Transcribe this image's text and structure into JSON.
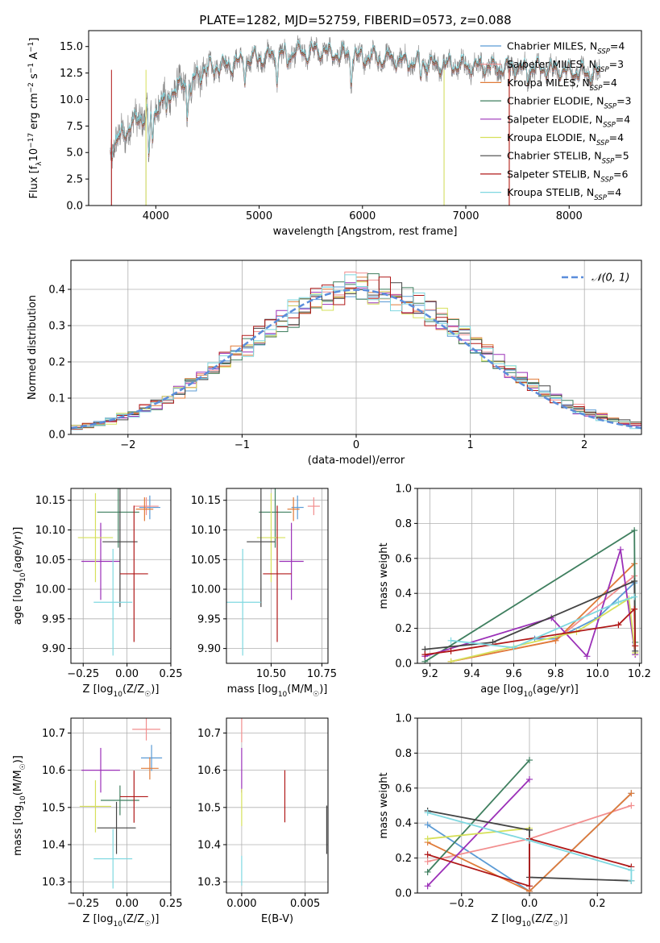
{
  "figure_title": "PLATE=1282, MJD=52759, FIBERID=0573, z=0.088",
  "colors": {
    "Chabrier MILES": "#5b9bd5",
    "Salpeter MILES": "#f28e8e",
    "Kroupa MILES": "#e07b39",
    "Chabrier ELODIE": "#3f7f5f",
    "Salpeter ELODIE": "#9b30b8",
    "Kroupa ELODIE": "#d6e05a",
    "Chabrier STELIB": "#444444",
    "Salpeter STELIB": "#b01818",
    "Kroupa STELIB": "#7fd8e0",
    "norm": "#5b8ddb",
    "data": "#808080"
  },
  "chart_data": [
    {
      "id": "spectrum",
      "type": "line",
      "title": "PLATE=1282, MJD=52759, FIBERID=0573, z=0.088",
      "xlabel": "wavelength [Angstrom, rest frame]",
      "ylabel": "Flux [fλ10⁻¹⁷ erg cm⁻² s⁻¹ A⁻¹]",
      "xlim": [
        3350,
        8700
      ],
      "ylim": [
        0,
        16.5
      ],
      "xticks": [
        4000,
        5000,
        6000,
        7000,
        8000
      ],
      "yticks": [
        0.0,
        2.5,
        5.0,
        7.5,
        10.0,
        12.5,
        15.0
      ],
      "legend_position": "right",
      "legend": [
        {
          "name": "Chabrier MILES",
          "nssp": "4"
        },
        {
          "name": "Salpeter MILES",
          "nssp": "3"
        },
        {
          "name": "Kroupa MILES",
          "nssp": "4"
        },
        {
          "name": "Chabrier ELODIE",
          "nssp": "3"
        },
        {
          "name": "Salpeter ELODIE",
          "nssp": "4"
        },
        {
          "name": "Kroupa ELODIE",
          "nssp": "4"
        },
        {
          "name": "Chabrier STELIB",
          "nssp": "5"
        },
        {
          "name": "Salpeter STELIB",
          "nssp": "6"
        },
        {
          "name": "Kroupa STELIB",
          "nssp": "4"
        }
      ],
      "continuum": [
        [
          3560,
          5.2
        ],
        [
          3650,
          6.3
        ],
        [
          3750,
          7.5
        ],
        [
          3850,
          8.3
        ],
        [
          3950,
          8.8
        ],
        [
          4050,
          9.8
        ],
        [
          4150,
          10.7
        ],
        [
          4300,
          11.5
        ],
        [
          4450,
          12.6
        ],
        [
          4600,
          13.1
        ],
        [
          4800,
          13.5
        ],
        [
          5000,
          13.9
        ],
        [
          5200,
          14.2
        ],
        [
          5400,
          14.4
        ],
        [
          5600,
          14.5
        ],
        [
          5800,
          14.3
        ],
        [
          6000,
          14.0
        ],
        [
          6200,
          13.9
        ],
        [
          6400,
          13.6
        ],
        [
          6600,
          13.4
        ],
        [
          6800,
          13.2
        ],
        [
          7000,
          13.2
        ],
        [
          7200,
          13.1
        ],
        [
          7400,
          13.0
        ],
        [
          7600,
          12.9
        ],
        [
          7800,
          12.8
        ],
        [
          8000,
          12.6
        ],
        [
          8200,
          12.5
        ],
        [
          8300,
          12.4
        ]
      ],
      "absorption_features": [
        [
          3934,
          -4.5
        ],
        [
          3969,
          -3.5
        ],
        [
          4102,
          -2.0
        ],
        [
          4305,
          -2.5
        ],
        [
          4340,
          -2.0
        ],
        [
          4861,
          -1.5
        ],
        [
          5175,
          -2.0
        ],
        [
          5270,
          -1.2
        ],
        [
          5890,
          -2.0
        ],
        [
          6563,
          -1.5
        ],
        [
          7600,
          -0.8
        ]
      ],
      "spikes": [
        [
          3570,
          0
        ],
        [
          3905,
          0
        ],
        [
          5260,
          3.5
        ],
        [
          6790,
          0
        ],
        [
          7420,
          0
        ]
      ]
    },
    {
      "id": "residuals",
      "type": "bar",
      "xlabel": "(data-model)/error",
      "ylabel": "Normed distribution",
      "xlim": [
        -2.5,
        2.5
      ],
      "ylim": [
        0,
        0.48
      ],
      "xticks": [
        -2,
        -1,
        0,
        1,
        2
      ],
      "yticks": [
        0.0,
        0.1,
        0.2,
        0.3,
        0.4
      ],
      "legend_label": "𝒩(0, 1)",
      "bin_width": 0.1
    },
    {
      "id": "age-vs-Z",
      "type": "scatter",
      "xlabel": "Z [log10(Z/Z☉)]",
      "ylabel": "age  [log10(age/yr)]",
      "xlim": [
        -0.32,
        0.25
      ],
      "ylim": [
        9.875,
        10.17
      ],
      "xticks": [
        -0.25,
        0.0,
        0.25
      ],
      "xtick_labels": [
        "−0.25",
        "0.00",
        "0.25"
      ],
      "yticks": [
        9.9,
        9.95,
        10.0,
        10.05,
        10.1,
        10.15
      ],
      "ytick_labels": [
        "9.90",
        "9.95",
        "10.00",
        "10.05",
        "10.10",
        "10.15"
      ],
      "points": [
        {
          "model": "Chabrier MILES",
          "x": 0.13,
          "xerr": 0.06,
          "y": 10.138,
          "yerr": 0.02
        },
        {
          "model": "Salpeter MILES",
          "x": 0.11,
          "xerr": 0.07,
          "y": 10.14,
          "yerr": 0.015
        },
        {
          "model": "Kroupa MILES",
          "x": 0.1,
          "xerr": 0.05,
          "y": 10.135,
          "yerr": 0.02
        },
        {
          "model": "Chabrier ELODIE",
          "x": -0.05,
          "xerr": 0.12,
          "y": 10.13,
          "yerr": 0.06
        },
        {
          "model": "Salpeter ELODIE",
          "x": -0.15,
          "xerr": 0.11,
          "y": 10.047,
          "yerr": 0.065
        },
        {
          "model": "Kroupa ELODIE",
          "x": -0.18,
          "xerr": 0.1,
          "y": 10.087,
          "yerr": 0.075
        },
        {
          "model": "Chabrier STELIB",
          "x": -0.04,
          "xerr": 0.1,
          "y": 10.08,
          "yerr": 0.11
        },
        {
          "model": "Salpeter STELIB",
          "x": 0.04,
          "xerr": 0.08,
          "y": 10.026,
          "yerr": 0.115
        },
        {
          "model": "Kroupa STELIB",
          "x": -0.08,
          "xerr": 0.11,
          "y": 9.978,
          "yerr": 0.09
        }
      ]
    },
    {
      "id": "age-vs-mass",
      "type": "scatter",
      "xlabel": "mass [log10(M/M☉)]",
      "xlim": [
        10.28,
        10.78
      ],
      "ylim": [
        9.875,
        10.17
      ],
      "xticks": [
        10.5,
        10.75
      ],
      "xtick_labels": [
        "10.50",
        "10.75"
      ],
      "yticks": [
        9.9,
        9.95,
        10.0,
        10.05,
        10.1,
        10.15
      ],
      "ytick_labels": [
        "9.90",
        "9.95",
        "10.00",
        "10.05",
        "10.10",
        "10.15"
      ],
      "points": [
        {
          "model": "Chabrier MILES",
          "x": 10.63,
          "xerr": 0.03,
          "y": 10.138,
          "yerr": 0.02
        },
        {
          "model": "Salpeter MILES",
          "x": 10.71,
          "xerr": 0.03,
          "y": 10.14,
          "yerr": 0.015
        },
        {
          "model": "Kroupa MILES",
          "x": 10.61,
          "xerr": 0.03,
          "y": 10.135,
          "yerr": 0.02
        },
        {
          "model": "Chabrier ELODIE",
          "x": 10.52,
          "xerr": 0.08,
          "y": 10.13,
          "yerr": 0.06
        },
        {
          "model": "Salpeter ELODIE",
          "x": 10.6,
          "xerr": 0.06,
          "y": 10.047,
          "yerr": 0.065
        },
        {
          "model": "Kroupa ELODIE",
          "x": 10.5,
          "xerr": 0.07,
          "y": 10.087,
          "yerr": 0.075
        },
        {
          "model": "Chabrier STELIB",
          "x": 10.45,
          "xerr": 0.07,
          "y": 10.08,
          "yerr": 0.11
        },
        {
          "model": "Salpeter STELIB",
          "x": 10.53,
          "xerr": 0.07,
          "y": 10.026,
          "yerr": 0.115
        },
        {
          "model": "Kroupa STELIB",
          "x": 10.36,
          "xerr": 0.09,
          "y": 9.978,
          "yerr": 0.09
        }
      ]
    },
    {
      "id": "weight-vs-age",
      "type": "line",
      "xlabel": "age  [log10(age/yr)]",
      "ylabel": "mass weight",
      "xlim": [
        9.14,
        10.21
      ],
      "ylim": [
        0,
        1.0
      ],
      "xticks": [
        9.2,
        9.4,
        9.6,
        9.8,
        10.0,
        10.2
      ],
      "xtick_labels": [
        "9.2",
        "9.4",
        "9.6",
        "9.8",
        "10.0",
        "10.2"
      ],
      "yticks": [
        0.0,
        0.2,
        0.4,
        0.6,
        0.8,
        1.0
      ],
      "ytick_labels": [
        "0.0",
        "0.2",
        "0.4",
        "0.6",
        "0.8",
        "1.0"
      ],
      "series": [
        {
          "model": "Chabrier MILES",
          "x": [
            9.7,
            9.8,
            10.0,
            10.176
          ],
          "y": [
            0.14,
            0.14,
            0.26,
            0.46
          ]
        },
        {
          "model": "Salpeter MILES",
          "x": [
            9.3,
            9.8,
            10.176
          ],
          "y": [
            0.01,
            0.13,
            0.5
          ]
        },
        {
          "model": "Kroupa MILES",
          "x": [
            9.3,
            9.8,
            10.176
          ],
          "y": [
            0.01,
            0.13,
            0.57
          ]
        },
        {
          "model": "Chabrier ELODIE",
          "x": [
            9.176,
            10.176,
            10.18
          ],
          "y": [
            0.01,
            0.76,
            0.12
          ]
        },
        {
          "model": "Salpeter ELODIE",
          "x": [
            9.176,
            9.78,
            9.95,
            10.11,
            10.18
          ],
          "y": [
            0.04,
            0.26,
            0.04,
            0.65,
            0.05
          ]
        },
        {
          "model": "Kroupa ELODIE",
          "x": [
            9.3,
            9.9,
            10.15,
            10.18
          ],
          "y": [
            0.01,
            0.18,
            0.37,
            0.06
          ]
        },
        {
          "model": "Chabrier STELIB",
          "x": [
            9.176,
            9.5,
            10.176,
            10.18
          ],
          "y": [
            0.08,
            0.12,
            0.47,
            0.07
          ]
        },
        {
          "model": "Salpeter STELIB",
          "x": [
            9.176,
            9.3,
            10.1,
            10.176,
            10.18
          ],
          "y": [
            0.05,
            0.07,
            0.22,
            0.31,
            0.1
          ]
        },
        {
          "model": "Kroupa STELIB",
          "x": [
            9.3,
            9.6,
            10.1,
            10.176
          ],
          "y": [
            0.13,
            0.09,
            0.35,
            0.38
          ]
        }
      ]
    },
    {
      "id": "mass-vs-Z",
      "type": "scatter",
      "xlabel": "Z [log10(Z/Z☉)]",
      "ylabel": "mass [log10(M/M☉)]",
      "xlim": [
        -0.32,
        0.25
      ],
      "ylim": [
        10.27,
        10.74
      ],
      "xticks": [
        -0.25,
        0.0,
        0.25
      ],
      "xtick_labels": [
        "−0.25",
        "0.00",
        "0.25"
      ],
      "yticks": [
        10.3,
        10.4,
        10.5,
        10.6,
        10.7
      ],
      "ytick_labels": [
        "10.3",
        "10.4",
        "10.5",
        "10.6",
        "10.7"
      ],
      "points": [
        {
          "model": "Chabrier MILES",
          "x": 0.14,
          "xerr": 0.06,
          "y": 10.633,
          "yerr": 0.035
        },
        {
          "model": "Salpeter MILES",
          "x": 0.11,
          "xerr": 0.08,
          "y": 10.71,
          "yerr": 0.03
        },
        {
          "model": "Kroupa MILES",
          "x": 0.13,
          "xerr": 0.05,
          "y": 10.605,
          "yerr": 0.03
        },
        {
          "model": "Chabrier ELODIE",
          "x": -0.04,
          "xerr": 0.11,
          "y": 10.519,
          "yerr": 0.04
        },
        {
          "model": "Salpeter ELODIE",
          "x": -0.15,
          "xerr": 0.11,
          "y": 10.6,
          "yerr": 0.06
        },
        {
          "model": "Kroupa ELODIE",
          "x": -0.18,
          "xerr": 0.09,
          "y": 10.503,
          "yerr": 0.07
        },
        {
          "model": "Chabrier STELIB",
          "x": -0.06,
          "xerr": 0.11,
          "y": 10.445,
          "yerr": 0.07
        },
        {
          "model": "Salpeter STELIB",
          "x": 0.04,
          "xerr": 0.08,
          "y": 10.529,
          "yerr": 0.07
        },
        {
          "model": "Kroupa STELIB",
          "x": -0.08,
          "xerr": 0.11,
          "y": 10.362,
          "yerr": 0.08
        }
      ]
    },
    {
      "id": "mass-vs-EBV",
      "type": "scatter",
      "xlabel": "E(B-V)",
      "xlim": [
        -0.0012,
        0.0068
      ],
      "ylim": [
        10.27,
        10.74
      ],
      "xticks": [
        0.0,
        0.005
      ],
      "xtick_labels": [
        "0.000",
        "0.005"
      ],
      "yticks": [
        10.3,
        10.4,
        10.5,
        10.6,
        10.7
      ],
      "ytick_labels": [
        "10.3",
        "10.4",
        "10.5",
        "10.6",
        "10.7"
      ],
      "points": [
        {
          "model": "Salpeter MILES",
          "x": 0.0,
          "y": 10.71,
          "yerr": 0.035
        },
        {
          "model": "Salpeter ELODIE",
          "x": 0.0,
          "y": 10.6,
          "yerr": 0.06
        },
        {
          "model": "Kroupa ELODIE",
          "x": 0.0,
          "y": 10.5,
          "yerr": 0.05
        },
        {
          "model": "Kroupa STELIB",
          "x": 0.0,
          "y": 10.33,
          "yerr": 0.04
        },
        {
          "model": "Salpeter STELIB",
          "x": 0.0034,
          "y": 10.53,
          "yerr": 0.07
        },
        {
          "model": "Chabrier STELIB",
          "x": 0.0067,
          "y": 10.44,
          "yerr": 0.065
        }
      ]
    },
    {
      "id": "weight-vs-Z",
      "type": "line",
      "xlabel": "Z [log10(Z/Z☉)]",
      "ylabel": "mass weight",
      "xlim": [
        -0.33,
        0.33
      ],
      "ylim": [
        0,
        1.0
      ],
      "xticks": [
        -0.2,
        0.0,
        0.2
      ],
      "xtick_labels": [
        "−0.2",
        "0.0",
        "0.2"
      ],
      "yticks": [
        0.0,
        0.2,
        0.4,
        0.6,
        0.8,
        1.0
      ],
      "ytick_labels": [
        "0.0",
        "0.2",
        "0.4",
        "0.6",
        "0.8",
        "1.0"
      ],
      "series": [
        {
          "model": "Chabrier MILES",
          "x": [
            -0.3,
            0.0,
            0.3
          ],
          "y": [
            0.39,
            0.01,
            0.57
          ]
        },
        {
          "model": "Salpeter MILES",
          "x": [
            -0.3,
            0.0,
            0.3
          ],
          "y": [
            0.18,
            0.31,
            0.5
          ]
        },
        {
          "model": "Kroupa MILES",
          "x": [
            -0.3,
            0.0,
            0.3
          ],
          "y": [
            0.29,
            0.01,
            0.57
          ]
        },
        {
          "model": "Chabrier ELODIE",
          "x": [
            -0.3,
            0.0
          ],
          "y": [
            0.12,
            0.76
          ]
        },
        {
          "model": "Salpeter ELODIE",
          "x": [
            -0.3,
            0.0
          ],
          "y": [
            0.04,
            0.65
          ]
        },
        {
          "model": "Kroupa ELODIE",
          "x": [
            -0.3,
            0.0
          ],
          "y": [
            0.31,
            0.37
          ]
        },
        {
          "model": "Chabrier STELIB",
          "x": [
            -0.3,
            0.0,
            0.0,
            0.3
          ],
          "y": [
            0.47,
            0.36,
            0.09,
            0.07
          ]
        },
        {
          "model": "Salpeter STELIB",
          "x": [
            -0.3,
            0.0,
            0.0,
            0.3
          ],
          "y": [
            0.22,
            0.04,
            0.31,
            0.15
          ]
        },
        {
          "model": "Kroupa STELIB",
          "x": [
            -0.3,
            0.0,
            0.3,
            0.3
          ],
          "y": [
            0.46,
            0.3,
            0.13,
            0.07
          ]
        }
      ]
    }
  ]
}
